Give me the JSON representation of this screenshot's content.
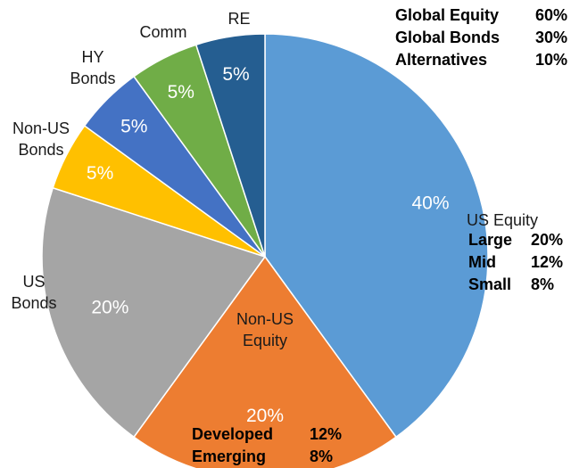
{
  "chart_data": {
    "type": "pie",
    "start_angle_deg": 0,
    "direction": "clockwise",
    "slices": [
      {
        "label_lines": [
          "US Equity"
        ],
        "value": 40,
        "value_label": "40%",
        "color": "#5B9BD5"
      },
      {
        "label_lines": [
          "Non-US",
          "Equity"
        ],
        "value": 20,
        "value_label": "20%",
        "color": "#ED7D31"
      },
      {
        "label_lines": [
          "US",
          "Bonds"
        ],
        "value": 20,
        "value_label": "20%",
        "color": "#A5A5A5"
      },
      {
        "label_lines": [
          "Non-US",
          "Bonds"
        ],
        "value": 5,
        "value_label": "5%",
        "color": "#FFC000"
      },
      {
        "label_lines": [
          "HY",
          "Bonds"
        ],
        "value": 5,
        "value_label": "5%",
        "color": "#4472C4"
      },
      {
        "label_lines": [
          "Comm"
        ],
        "value": 5,
        "value_label": "5%",
        "color": "#70AD47"
      },
      {
        "label_lines": [
          "RE"
        ],
        "value": 5,
        "value_label": "5%",
        "color": "#255E91"
      }
    ],
    "summary": [
      {
        "name": "Global Equity",
        "pct": "60%"
      },
      {
        "name": "Global Bonds",
        "pct": "30%"
      },
      {
        "name": "Alternatives",
        "pct": "10%"
      }
    ],
    "us_equity_breakdown": [
      {
        "name": "Large",
        "pct": "20%"
      },
      {
        "name": "Mid",
        "pct": "12%"
      },
      {
        "name": "Small",
        "pct": "8%"
      }
    ],
    "non_us_equity_breakdown": [
      {
        "name": "Developed",
        "pct": "12%"
      },
      {
        "name": "Emerging",
        "pct": "8%"
      }
    ]
  }
}
